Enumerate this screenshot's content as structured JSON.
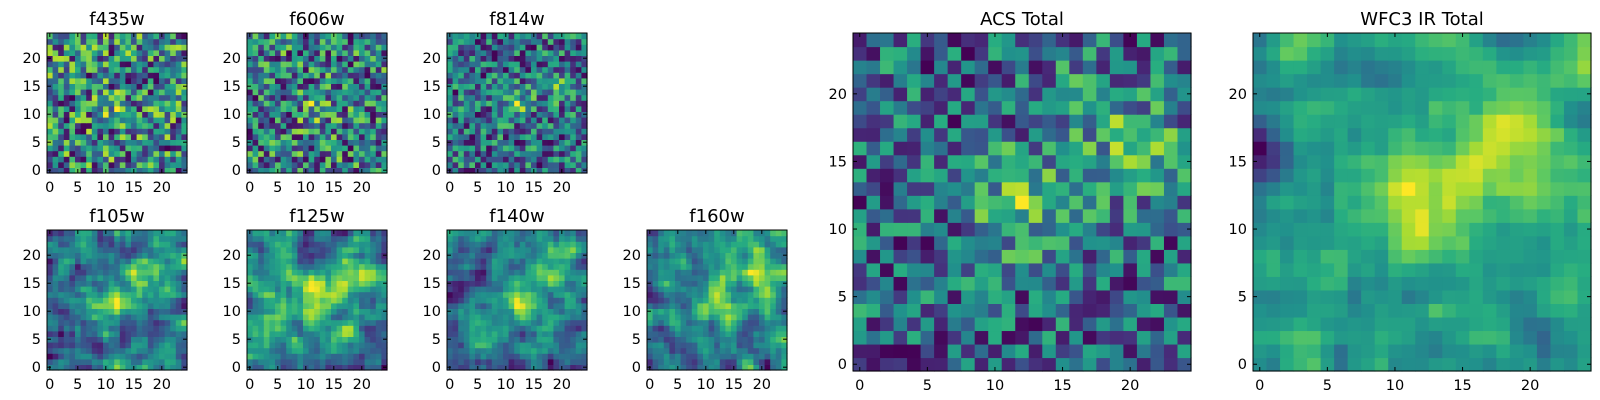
{
  "figure": {
    "colormap": "viridis",
    "colors": {
      "dark": "#440154",
      "mid": "#21918c",
      "bright": "#fde725"
    }
  },
  "chart_data": [
    {
      "type": "heatmap",
      "title": "f435w",
      "grid_size": [
        25,
        25
      ],
      "xlim": [
        0,
        24
      ],
      "ylim": [
        0,
        24
      ],
      "xticks": [
        0,
        5,
        10,
        15,
        20
      ],
      "yticks": [
        0,
        5,
        10,
        15,
        20
      ],
      "xlabel": "",
      "ylabel": "",
      "colormap": "viridis",
      "seed": 11,
      "blobs": [
        [
          12,
          11,
          2,
          0.12
        ]
      ],
      "noise": 0.5,
      "smooth": 0,
      "base": 0.6,
      "contrast": 0.7
    },
    {
      "type": "heatmap",
      "title": "f606w",
      "grid_size": [
        25,
        25
      ],
      "xlim": [
        0,
        24
      ],
      "ylim": [
        0,
        24
      ],
      "xticks": [
        0,
        5,
        10,
        15,
        20
      ],
      "yticks": [
        0,
        5,
        10,
        15,
        20
      ],
      "xlabel": "",
      "ylabel": "",
      "colormap": "viridis",
      "seed": 23,
      "blobs": [
        [
          12,
          11,
          2,
          0.25
        ]
      ],
      "noise": 0.55,
      "smooth": 0,
      "base": 0.55,
      "contrast": 0.75
    },
    {
      "type": "heatmap",
      "title": "f814w",
      "grid_size": [
        25,
        25
      ],
      "xlim": [
        0,
        24
      ],
      "ylim": [
        0,
        24
      ],
      "xticks": [
        0,
        5,
        10,
        15,
        20
      ],
      "yticks": [
        0,
        5,
        10,
        15,
        20
      ],
      "xlabel": "",
      "ylabel": "",
      "colormap": "viridis",
      "seed": 37,
      "blobs": [
        [
          12,
          12,
          2,
          0.35
        ],
        [
          20,
          15,
          2,
          0.25
        ]
      ],
      "noise": 0.55,
      "smooth": 0,
      "base": 0.55,
      "contrast": 0.75
    },
    {
      "type": "heatmap",
      "title": "f105w",
      "grid_size": [
        25,
        25
      ],
      "xlim": [
        0,
        24
      ],
      "ylim": [
        0,
        24
      ],
      "xticks": [
        0,
        5,
        10,
        15,
        20
      ],
      "yticks": [
        0,
        5,
        10,
        15,
        20
      ],
      "xlabel": "",
      "ylabel": "",
      "colormap": "viridis",
      "seed": 41,
      "blobs": [
        [
          12,
          12,
          3,
          0.4
        ],
        [
          18,
          17,
          3,
          0.25
        ]
      ],
      "noise": 0.5,
      "smooth": 1,
      "base": 0.5,
      "contrast": 0.8
    },
    {
      "type": "heatmap",
      "title": "f125w",
      "grid_size": [
        25,
        25
      ],
      "xlim": [
        0,
        24
      ],
      "ylim": [
        0,
        24
      ],
      "xticks": [
        0,
        5,
        10,
        15,
        20
      ],
      "yticks": [
        0,
        5,
        10,
        15,
        20
      ],
      "xlabel": "",
      "ylabel": "",
      "colormap": "viridis",
      "seed": 53,
      "blobs": [
        [
          12,
          12,
          3,
          0.4
        ],
        [
          20,
          16,
          3,
          0.35
        ]
      ],
      "noise": 0.5,
      "smooth": 1,
      "base": 0.5,
      "contrast": 0.8
    },
    {
      "type": "heatmap",
      "title": "f140w",
      "grid_size": [
        25,
        25
      ],
      "xlim": [
        0,
        24
      ],
      "ylim": [
        0,
        24
      ],
      "xticks": [
        0,
        5,
        10,
        15,
        20
      ],
      "yticks": [
        0,
        5,
        10,
        15,
        20
      ],
      "xlabel": "",
      "ylabel": "",
      "colormap": "viridis",
      "seed": 67,
      "blobs": [
        [
          12,
          12,
          3,
          0.4
        ],
        [
          19,
          17,
          3,
          0.4
        ]
      ],
      "noise": 0.5,
      "smooth": 1,
      "base": 0.45,
      "contrast": 0.85
    },
    {
      "type": "heatmap",
      "title": "f160w",
      "grid_size": [
        25,
        25
      ],
      "xlim": [
        0,
        24
      ],
      "ylim": [
        0,
        24
      ],
      "xticks": [
        0,
        5,
        10,
        15,
        20
      ],
      "yticks": [
        0,
        5,
        10,
        15,
        20
      ],
      "xlabel": "",
      "ylabel": "",
      "colormap": "viridis",
      "seed": 79,
      "blobs": [
        [
          12,
          12,
          3,
          0.45
        ],
        [
          19,
          17,
          3,
          0.45
        ]
      ],
      "noise": 0.5,
      "smooth": 1,
      "base": 0.4,
      "contrast": 0.9
    },
    {
      "type": "heatmap",
      "title": "ACS Total",
      "grid_size": [
        25,
        25
      ],
      "xlim": [
        0,
        24
      ],
      "ylim": [
        0,
        24
      ],
      "xticks": [
        0,
        5,
        10,
        15,
        20
      ],
      "yticks": [
        0,
        5,
        10,
        15,
        20
      ],
      "xlabel": "",
      "ylabel": "",
      "colormap": "viridis",
      "seed": 97,
      "blobs": [
        [
          12,
          12,
          2.5,
          0.35
        ],
        [
          20,
          16,
          2.5,
          0.3
        ],
        [
          16,
          20,
          2,
          0.15
        ]
      ],
      "noise": 0.45,
      "smooth": 0,
      "base": 0.62,
      "contrast": 0.7
    },
    {
      "type": "heatmap",
      "title": "WFC3 IR Total",
      "grid_size": [
        25,
        25
      ],
      "xlim": [
        0,
        24
      ],
      "ylim": [
        0,
        24
      ],
      "xticks": [
        0,
        5,
        10,
        15,
        20
      ],
      "yticks": [
        0,
        5,
        10,
        15,
        20
      ],
      "xlabel": "",
      "ylabel": "",
      "colormap": "viridis",
      "seed": 113,
      "blobs": [
        [
          12,
          12,
          3,
          0.45
        ],
        [
          19,
          17,
          3.2,
          0.45
        ],
        [
          0,
          16,
          1.5,
          -0.5
        ]
      ],
      "noise": 0.35,
      "smooth": 1,
      "base": 0.42,
      "contrast": 0.9
    }
  ]
}
